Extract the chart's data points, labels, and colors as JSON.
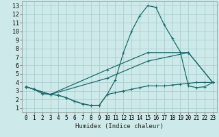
{
  "background_color": "#cee9e9",
  "grid_color": "#aacfcf",
  "line_color": "#1a6b6b",
  "xlabel": "Humidex (Indice chaleur)",
  "xlim": [
    -0.5,
    23.5
  ],
  "ylim": [
    0.5,
    13.5
  ],
  "xticks": [
    0,
    1,
    2,
    3,
    4,
    5,
    6,
    7,
    8,
    9,
    10,
    11,
    12,
    13,
    14,
    15,
    16,
    17,
    18,
    19,
    20,
    21,
    22,
    23
  ],
  "yticks": [
    1,
    2,
    3,
    4,
    5,
    6,
    7,
    8,
    9,
    10,
    11,
    12,
    13
  ],
  "line1_x": [
    0,
    1,
    2,
    3,
    4,
    5,
    6,
    7,
    8,
    9,
    10,
    11,
    12,
    13,
    14,
    15,
    16,
    17,
    18,
    19,
    20,
    21,
    22,
    23
  ],
  "line1_y": [
    3.5,
    3.2,
    2.7,
    2.6,
    2.5,
    2.2,
    1.8,
    1.5,
    1.3,
    1.3,
    2.6,
    4.3,
    7.5,
    10.0,
    11.8,
    13.0,
    12.8,
    10.8,
    9.2,
    7.6,
    3.6,
    3.4,
    3.5,
    4.0
  ],
  "line2_x": [
    0,
    1,
    2,
    3,
    4,
    5,
    6,
    7,
    8,
    9,
    10,
    11,
    12,
    13,
    14,
    15,
    16,
    17,
    18,
    19,
    20,
    21,
    22,
    23
  ],
  "line2_y": [
    3.5,
    3.2,
    2.7,
    2.6,
    2.5,
    2.2,
    1.8,
    1.5,
    1.3,
    1.3,
    2.6,
    2.8,
    3.0,
    3.2,
    3.4,
    3.6,
    3.6,
    3.6,
    3.7,
    3.8,
    3.9,
    4.0,
    4.0,
    4.0
  ],
  "line3_x": [
    0,
    3,
    10,
    15,
    20,
    23
  ],
  "line3_y": [
    3.5,
    2.6,
    4.5,
    6.5,
    7.5,
    4.0
  ],
  "line4_x": [
    0,
    3,
    10,
    15,
    20,
    23
  ],
  "line4_y": [
    3.5,
    2.6,
    5.5,
    7.5,
    7.5,
    4.0
  ]
}
